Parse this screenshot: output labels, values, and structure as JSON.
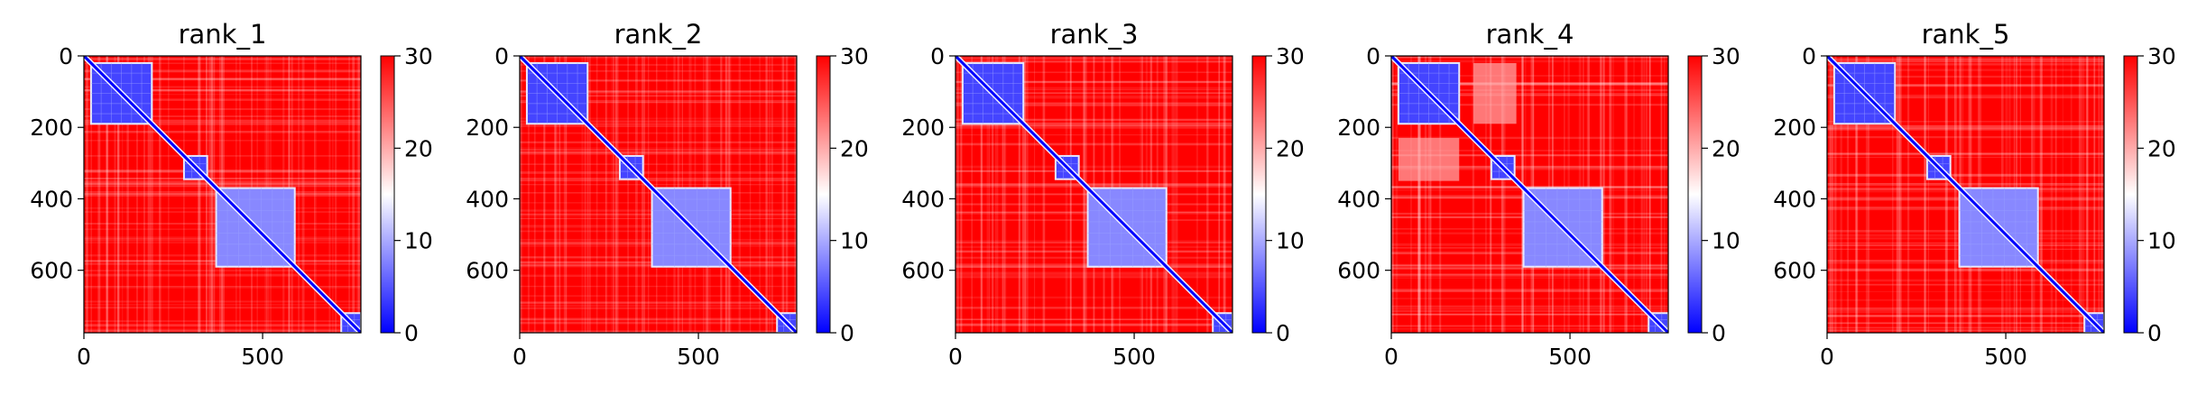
{
  "chart_data": [
    {
      "type": "heatmap",
      "title": "rank_1",
      "xlim": [
        0,
        775
      ],
      "ylim": [
        775,
        0
      ],
      "xticks": [
        0,
        500
      ],
      "yticks": [
        0,
        200,
        400,
        600
      ],
      "colorbar": {
        "min": 0,
        "max": 30,
        "ticks": [
          0,
          10,
          20,
          30
        ]
      },
      "blocks": [
        {
          "start": 20,
          "end": 190,
          "value": 4,
          "anomaly_end": 0
        },
        {
          "start": 280,
          "end": 345,
          "value": 4
        },
        {
          "start": 370,
          "end": 590,
          "value": 8
        },
        {
          "start": 720,
          "end": 775,
          "value": 4
        }
      ]
    },
    {
      "type": "heatmap",
      "title": "rank_2",
      "xlim": [
        0,
        775
      ],
      "ylim": [
        775,
        0
      ],
      "xticks": [
        0,
        500
      ],
      "yticks": [
        0,
        200,
        400,
        600
      ],
      "colorbar": {
        "min": 0,
        "max": 30,
        "ticks": [
          0,
          10,
          20,
          30
        ]
      },
      "blocks": [
        {
          "start": 20,
          "end": 190,
          "value": 4
        },
        {
          "start": 280,
          "end": 345,
          "value": 4
        },
        {
          "start": 370,
          "end": 590,
          "value": 8
        },
        {
          "start": 720,
          "end": 775,
          "value": 4
        }
      ]
    },
    {
      "type": "heatmap",
      "title": "rank_3",
      "xlim": [
        0,
        775
      ],
      "ylim": [
        775,
        0
      ],
      "xticks": [
        0,
        500
      ],
      "yticks": [
        0,
        200,
        400,
        600
      ],
      "colorbar": {
        "min": 0,
        "max": 30,
        "ticks": [
          0,
          10,
          20,
          30
        ]
      },
      "blocks": [
        {
          "start": 20,
          "end": 190,
          "value": 4
        },
        {
          "start": 280,
          "end": 345,
          "value": 4
        },
        {
          "start": 370,
          "end": 590,
          "value": 8
        },
        {
          "start": 720,
          "end": 775,
          "value": 4
        }
      ]
    },
    {
      "type": "heatmap",
      "title": "rank_4",
      "xlim": [
        0,
        775
      ],
      "ylim": [
        775,
        0
      ],
      "xticks": [
        0,
        500
      ],
      "yticks": [
        0,
        200,
        400,
        600
      ],
      "colorbar": {
        "min": 0,
        "max": 30,
        "ticks": [
          0,
          10,
          20,
          30
        ]
      },
      "blocks": [
        {
          "start": 20,
          "end": 190,
          "value": 4
        },
        {
          "start": 280,
          "end": 345,
          "value": 4
        },
        {
          "start": 370,
          "end": 590,
          "value": 8
        },
        {
          "start": 720,
          "end": 775,
          "value": 4
        }
      ],
      "pale_region": {
        "x": [
          230,
          350
        ],
        "y": [
          20,
          190
        ],
        "value": 20
      }
    },
    {
      "type": "heatmap",
      "title": "rank_5",
      "xlim": [
        0,
        775
      ],
      "ylim": [
        775,
        0
      ],
      "xticks": [
        0,
        500
      ],
      "yticks": [
        0,
        200,
        400,
        600
      ],
      "colorbar": {
        "min": 0,
        "max": 30,
        "ticks": [
          0,
          10,
          20,
          30
        ]
      },
      "blocks": [
        {
          "start": 20,
          "end": 190,
          "value": 4
        },
        {
          "start": 280,
          "end": 345,
          "value": 4
        },
        {
          "start": 370,
          "end": 590,
          "value": 8
        },
        {
          "start": 720,
          "end": 775,
          "value": 4
        }
      ]
    }
  ],
  "colors": {
    "low": "#0000ff",
    "mid": "#ffffff",
    "high": "#ff0000"
  }
}
